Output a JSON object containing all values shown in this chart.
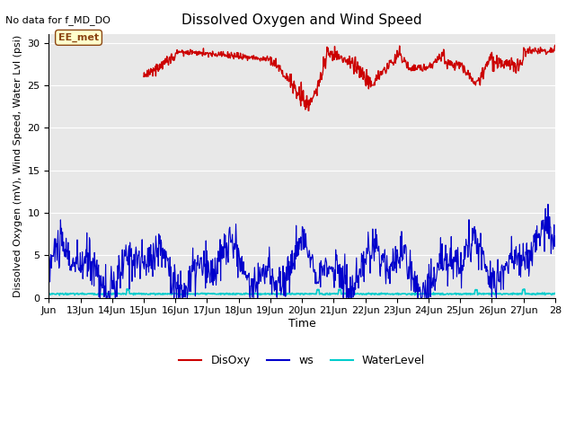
{
  "title": "Dissolved Oxygen and Wind Speed",
  "top_left_text": "No data for f_MD_DO",
  "ylabel": "Dissolved Oxygen (mV), Wind Speed, Water Lvl (psi)",
  "xlabel": "Time",
  "annotation_label": "EE_met",
  "xlim": [
    0,
    16
  ],
  "ylim": [
    0,
    31
  ],
  "yticks": [
    0,
    5,
    10,
    15,
    20,
    25,
    30
  ],
  "xtick_positions": [
    0,
    1,
    2,
    3,
    4,
    5,
    6,
    7,
    8,
    9,
    10,
    11,
    12,
    13,
    14,
    15,
    16
  ],
  "xtick_labels": [
    "Jun",
    "13Jun",
    "14Jun",
    "15Jun",
    "16Jun",
    "17Jun",
    "18Jun",
    "19Jun",
    "20Jun",
    "21Jun",
    "22Jun",
    "23Jun",
    "24Jun",
    "25Jun",
    "26Jun",
    "27Jun",
    "28"
  ],
  "bg_color": "#e8e8e8",
  "disoxy_color": "#cc0000",
  "ws_color": "#0000cc",
  "waterlevel_color": "#00cccc",
  "legend_labels": [
    "DisOxy",
    "ws",
    "WaterLevel"
  ]
}
